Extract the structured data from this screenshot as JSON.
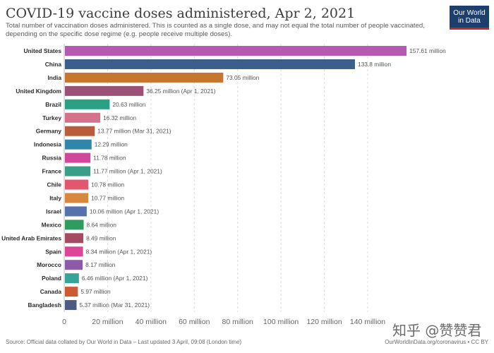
{
  "title": "COVID-19 vaccine doses administered, Apr 2, 2021",
  "subtitle": "Total number of vaccination doses administered. This is counted as a single dose, and may not equal the total number of people vaccinated, depending on the specific dose regime (e.g. people receive multiple doses).",
  "logo": {
    "line1": "Our World",
    "line2": "in Data"
  },
  "footer": "Source: Official data collated by Our World in Data – Last updated 3 April, 09:08 (London time)",
  "license": "OurWorldInData.org/coronavirus • CC BY",
  "watermark": "知乎 @赞赞君",
  "chart_data": {
    "type": "bar",
    "orientation": "horizontal",
    "xlim": [
      0,
      160
    ],
    "x_unit": "million",
    "ticks": [
      0,
      20,
      40,
      60,
      80,
      100,
      120,
      140
    ],
    "tick_labels": [
      "0",
      "20 million",
      "40 million",
      "60 million",
      "80 million",
      "100 million",
      "120 million",
      "140 million"
    ],
    "grid": true,
    "categories": [
      "United States",
      "China",
      "India",
      "United Kingdom",
      "Brazil",
      "Turkey",
      "Germany",
      "Indonesia",
      "Russia",
      "France",
      "Chile",
      "Italy",
      "Israel",
      "Mexico",
      "United Arab Emirates",
      "Spain",
      "Morocco",
      "Poland",
      "Canada",
      "Bangladesh"
    ],
    "values": [
      157.61,
      133.8,
      73.05,
      36.25,
      20.63,
      16.32,
      13.77,
      12.29,
      11.78,
      11.77,
      10.78,
      10.77,
      10.06,
      8.64,
      8.49,
      8.34,
      8.17,
      6.46,
      5.97,
      5.37
    ],
    "value_labels": [
      "157.61 million",
      "133.8 million",
      "73.05 million",
      "36.25 million (Apr 1, 2021)",
      "20.63 million",
      "16.32 million",
      "13.77 million (Mar 31, 2021)",
      "12.29 million",
      "11.78 million",
      "11.77 million (Apr 1, 2021)",
      "10.78 million",
      "10.77 million",
      "10.06 million (Apr 1, 2021)",
      "8.64 million",
      "8.49 million",
      "8.34 million (Apr 1, 2021)",
      "8.17 million",
      "6.46 million (Apr 1, 2021)",
      "5.97 million",
      "5.37 million (Mar 31, 2021)"
    ],
    "colors": [
      "#b45ab0",
      "#3b5f8a",
      "#c6762f",
      "#9a5175",
      "#2aa183",
      "#d4728b",
      "#b85c3c",
      "#2f86a8",
      "#d1479a",
      "#3b9e87",
      "#e0576e",
      "#d8883e",
      "#5572ad",
      "#2f9b5e",
      "#a44b62",
      "#df4596",
      "#8c5aa8",
      "#38a39a",
      "#cd5b32",
      "#4b5b82"
    ]
  }
}
